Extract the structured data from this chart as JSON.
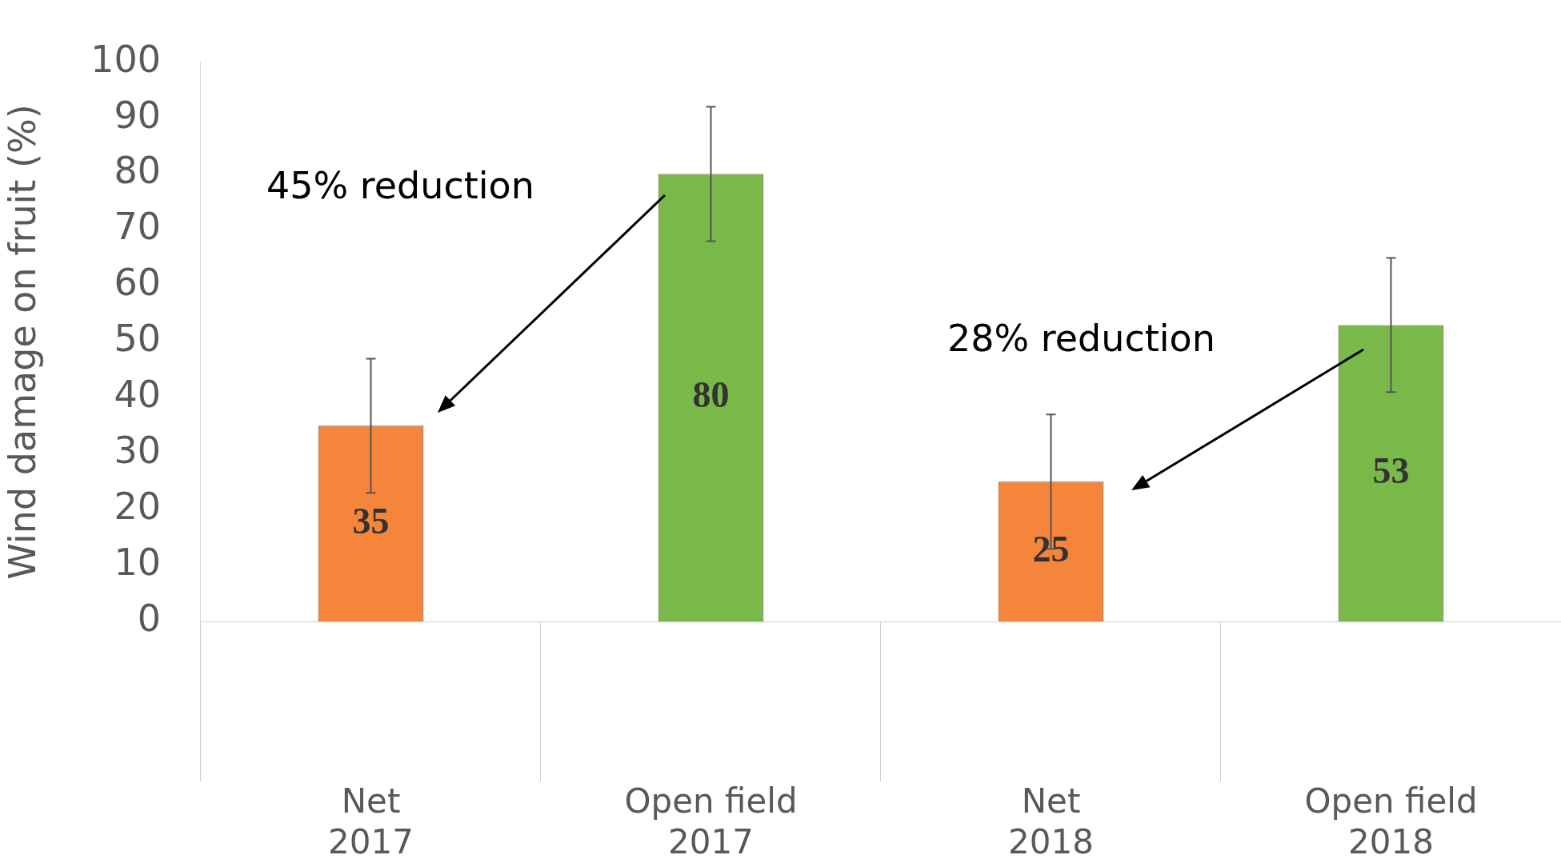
{
  "chart_data": {
    "type": "bar",
    "ylabel": "Wind damage on fruit (%)",
    "categories": [
      "Net\n2017",
      "Open field\n2017",
      "Net\n2018",
      "Open field\n2018"
    ],
    "values": [
      35,
      80,
      25,
      53
    ],
    "colors": [
      "#f5853a",
      "#78b94a",
      "#f5853a",
      "#78b94a"
    ],
    "errors": [
      12,
      12,
      12,
      12
    ],
    "ylim": [
      0,
      100
    ],
    "yticks": [
      0,
      10,
      20,
      30,
      40,
      50,
      60,
      70,
      80,
      90,
      100
    ],
    "data_labels": true,
    "grid": false,
    "legend": false,
    "annotations": [
      "45% reduction",
      "28% reduction"
    ]
  }
}
